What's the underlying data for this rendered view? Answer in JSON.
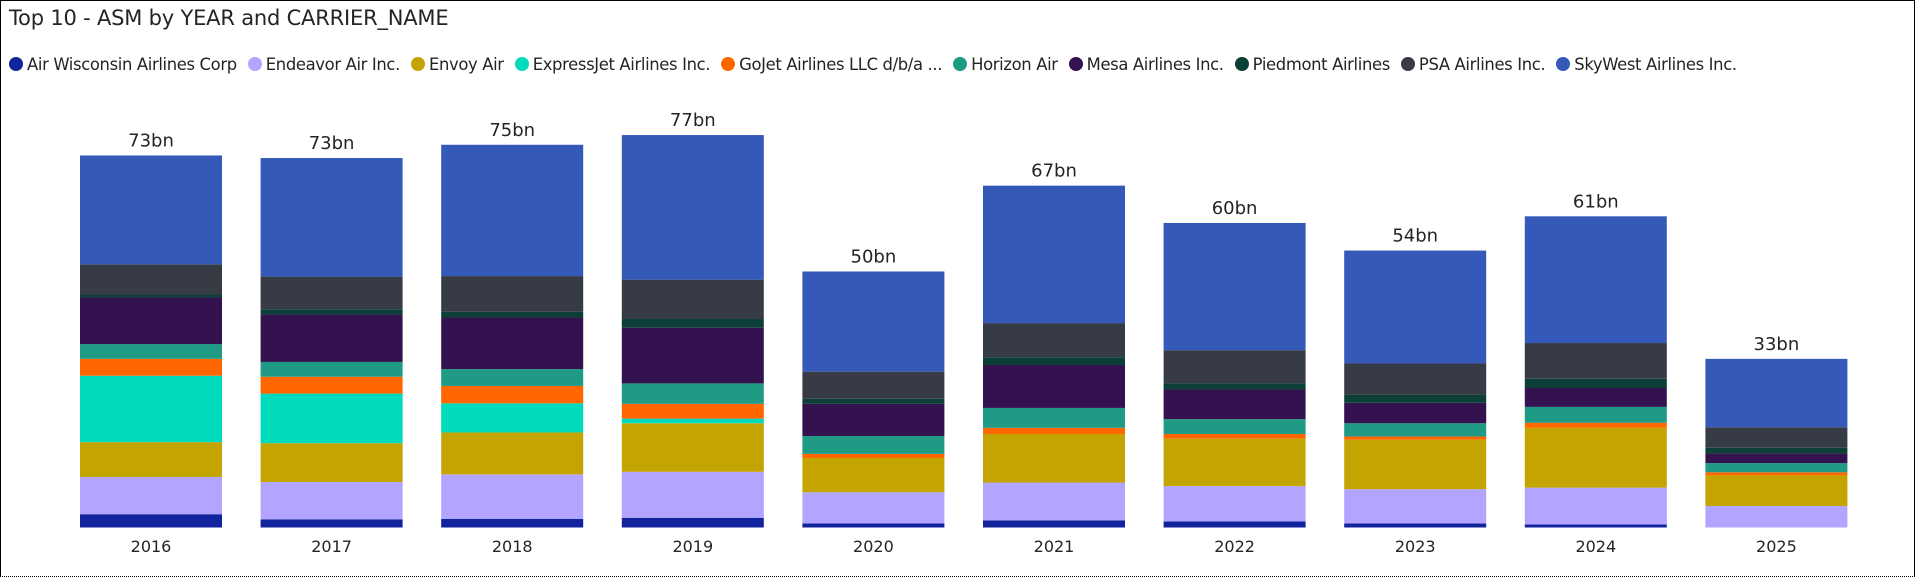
{
  "chart_data": {
    "type": "bar",
    "stacked": true,
    "title": "Top 10 - ASM by YEAR and CARRIER_NAME",
    "xlabel": "",
    "ylabel": "",
    "units": "bn",
    "legend_position": "top-left",
    "grid": false,
    "y_axis_visible": false,
    "ylim": [
      0,
      77
    ],
    "categories": [
      "2016",
      "2017",
      "2018",
      "2019",
      "2020",
      "2021",
      "2022",
      "2023",
      "2024",
      "2025"
    ],
    "totals_labels": [
      "73bn",
      "73bn",
      "75bn",
      "77bn",
      "50bn",
      "67bn",
      "60bn",
      "54bn",
      "61bn",
      "33bn"
    ],
    "series": [
      {
        "name": "Air Wisconsin Airlines Corp",
        "color": "#12239E",
        "values": [
          2.6,
          1.6,
          1.7,
          1.9,
          0.8,
          1.4,
          1.2,
          0.8,
          0.6,
          0.0
        ]
      },
      {
        "name": "Endeavor Air Inc.",
        "color": "#B3A5FF",
        "values": [
          7.3,
          7.3,
          8.7,
          9.0,
          6.1,
          7.4,
          6.9,
          6.7,
          7.2,
          4.2
        ]
      },
      {
        "name": "Envoy Air",
        "color": "#C4A400",
        "values": [
          6.8,
          7.6,
          8.2,
          9.5,
          6.7,
          9.5,
          9.3,
          9.7,
          11.7,
          6.0
        ]
      },
      {
        "name": "ExpressJet Airlines Inc.",
        "color": "#00DBBD",
        "values": [
          13.0,
          9.7,
          5.7,
          0.9,
          0.0,
          0.0,
          0.0,
          0.0,
          0.0,
          0.0
        ]
      },
      {
        "name": "GoJet Airlines LLC d/b/a ...",
        "color": "#FF6600",
        "values": [
          3.3,
          3.3,
          3.4,
          2.9,
          0.8,
          1.2,
          0.9,
          0.6,
          1.0,
          0.6
        ]
      },
      {
        "name": "Horizon Air",
        "color": "#1F9A85",
        "values": [
          2.9,
          2.9,
          3.3,
          4.0,
          3.5,
          3.9,
          2.9,
          2.6,
          3.1,
          1.8
        ]
      },
      {
        "name": "Mesa Airlines Inc.",
        "color": "#34124F",
        "values": [
          9.1,
          9.3,
          10.1,
          10.9,
          6.3,
          8.4,
          5.8,
          4.0,
          3.7,
          1.9
        ]
      },
      {
        "name": "Piedmont Airlines",
        "color": "#0B3F38",
        "values": [
          0.6,
          1.0,
          1.1,
          1.7,
          1.0,
          1.5,
          1.2,
          1.6,
          1.8,
          1.1
        ]
      },
      {
        "name": "PSA Airlines Inc.",
        "color": "#363B46",
        "values": [
          5.9,
          6.4,
          7.0,
          7.7,
          5.3,
          6.7,
          6.5,
          6.1,
          7.0,
          4.0
        ]
      },
      {
        "name": "SkyWest Airlines Inc.",
        "color": "#3459B8",
        "values": [
          21.3,
          23.2,
          25.7,
          28.3,
          19.6,
          26.9,
          24.9,
          22.1,
          24.8,
          13.4
        ]
      }
    ]
  }
}
